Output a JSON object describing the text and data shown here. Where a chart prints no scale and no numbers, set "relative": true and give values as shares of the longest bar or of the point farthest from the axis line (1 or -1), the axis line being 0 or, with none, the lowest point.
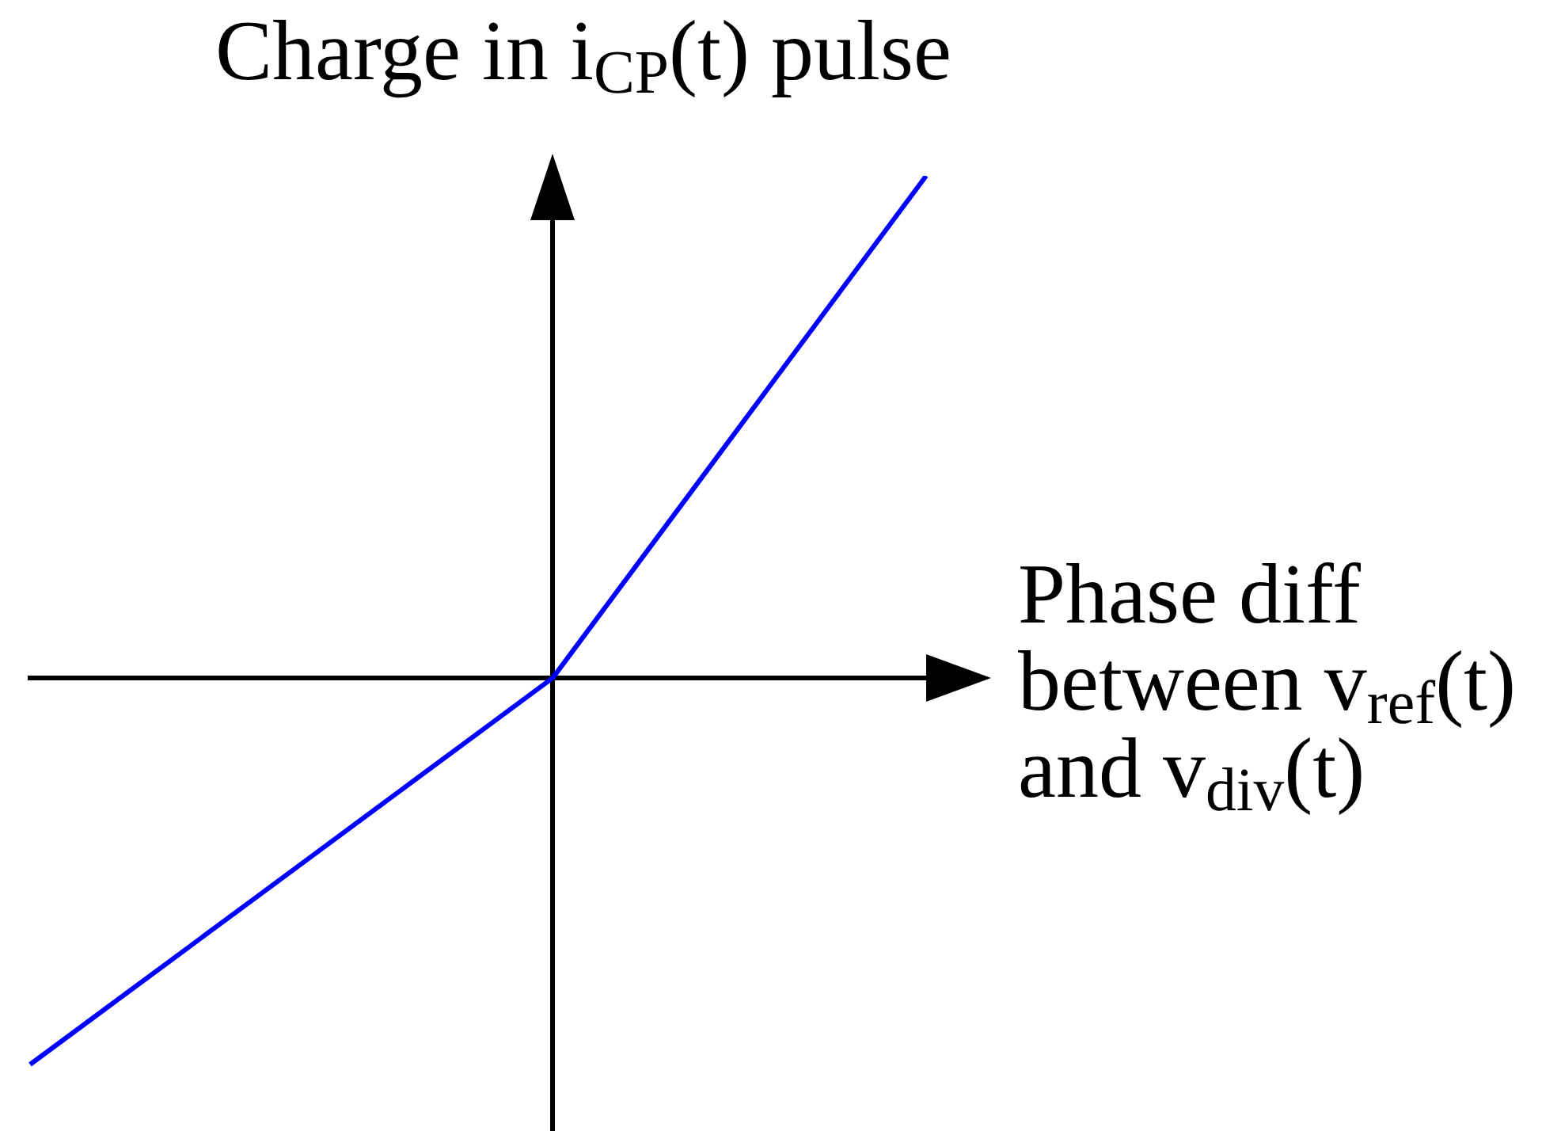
{
  "chart_data": {
    "type": "line",
    "ylabel": "Charge in i$_{CP}$(t) pulse",
    "xlabel": "Phase diff between v$_{ref}$(t) and v$_{div}$(t)",
    "categories": [
      null,
      null,
      null,
      null,
      null,
      null,
      null,
      null,
      null,
      null,
      null,
      null,
      null
    ],
    "relative": true,
    "series": [
      {
        "color": "#0000ff",
        "values": [
          -0.77,
          -0.66,
          -0.55,
          -0.44,
          -0.33,
          -0.22,
          -0.11,
          0,
          0.2,
          0.4,
          0.6,
          0.8,
          1
        ]
      }
    ],
    "marker": "none",
    "grid": false,
    "legend": false
  }
}
